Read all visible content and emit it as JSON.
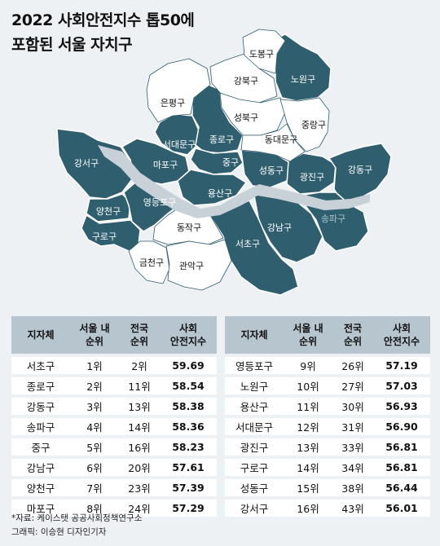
{
  "title": {
    "line1": "2022 사회안전지수 톱50에",
    "line2": "포함된 서울 자치구"
  },
  "colors": {
    "top50": "#2f5f6f",
    "other": "#ffffff",
    "river": "#c9d1d8",
    "header": "#b7c5cf",
    "background": "#eef1f4"
  },
  "map_labels": {
    "dobong": "도봉구",
    "gangbuk": "강북구",
    "nowon": "노원구",
    "eunpyeong": "은평구",
    "seongbuk": "성북구",
    "jungnang": "중랑구",
    "dongdaemun": "동대문구",
    "seodaemun": "서대문구",
    "jongno": "종로구",
    "mapo": "마포구",
    "jung": "중구",
    "seongdong": "성동구",
    "gwangjin": "광진구",
    "gangdong": "강동구",
    "gangseo": "강서구",
    "yongsan": "용산구",
    "yeongdeungpo": "영등포구",
    "yangcheon": "양천구",
    "guro": "구로구",
    "dongjak": "동작구",
    "gangnam": "강남구",
    "songpa": "송파구",
    "seocho": "서초구",
    "geumcheon": "금천구",
    "gwanak": "관악구"
  },
  "table_headers": {
    "district": "지자체",
    "seoul_rank_1": "서울 내",
    "seoul_rank_2": "순위",
    "national_rank_1": "전국",
    "national_rank_2": "순위",
    "index_1": "사회",
    "index_2": "안전지수"
  },
  "left_rows": [
    {
      "district": "서초구",
      "seoul_rank": "1위",
      "national_rank": "2위",
      "score": "59.69"
    },
    {
      "district": "종로구",
      "seoul_rank": "2위",
      "national_rank": "11위",
      "score": "58.54"
    },
    {
      "district": "강동구",
      "seoul_rank": "3위",
      "national_rank": "13위",
      "score": "58.38"
    },
    {
      "district": "송파구",
      "seoul_rank": "4위",
      "national_rank": "14위",
      "score": "58.36"
    },
    {
      "district": "중구",
      "seoul_rank": "5위",
      "national_rank": "16위",
      "score": "58.23"
    },
    {
      "district": "강남구",
      "seoul_rank": "6위",
      "national_rank": "20위",
      "score": "57.61"
    },
    {
      "district": "양천구",
      "seoul_rank": "7위",
      "national_rank": "23위",
      "score": "57.39"
    },
    {
      "district": "마포구",
      "seoul_rank": "8위",
      "national_rank": "24위",
      "score": "57.29"
    }
  ],
  "right_rows": [
    {
      "district": "영등포구",
      "seoul_rank": "9위",
      "national_rank": "26위",
      "score": "57.19"
    },
    {
      "district": "노원구",
      "seoul_rank": "10위",
      "national_rank": "27위",
      "score": "57.03"
    },
    {
      "district": "용산구",
      "seoul_rank": "11위",
      "national_rank": "30위",
      "score": "56.93"
    },
    {
      "district": "서대문구",
      "seoul_rank": "12위",
      "national_rank": "31위",
      "score": "56.90"
    },
    {
      "district": "광진구",
      "seoul_rank": "13위",
      "national_rank": "33위",
      "score": "56.81"
    },
    {
      "district": "구로구",
      "seoul_rank": "14위",
      "national_rank": "34위",
      "score": "56.81"
    },
    {
      "district": "성동구",
      "seoul_rank": "15위",
      "national_rank": "38위",
      "score": "56.44"
    },
    {
      "district": "강서구",
      "seoul_rank": "16위",
      "national_rank": "43위",
      "score": "56.01"
    }
  ],
  "footer": {
    "source": "*자료: 케이스탯 공공사회정책연구소",
    "graphic": "그래픽: 이승현 디자인기자"
  }
}
